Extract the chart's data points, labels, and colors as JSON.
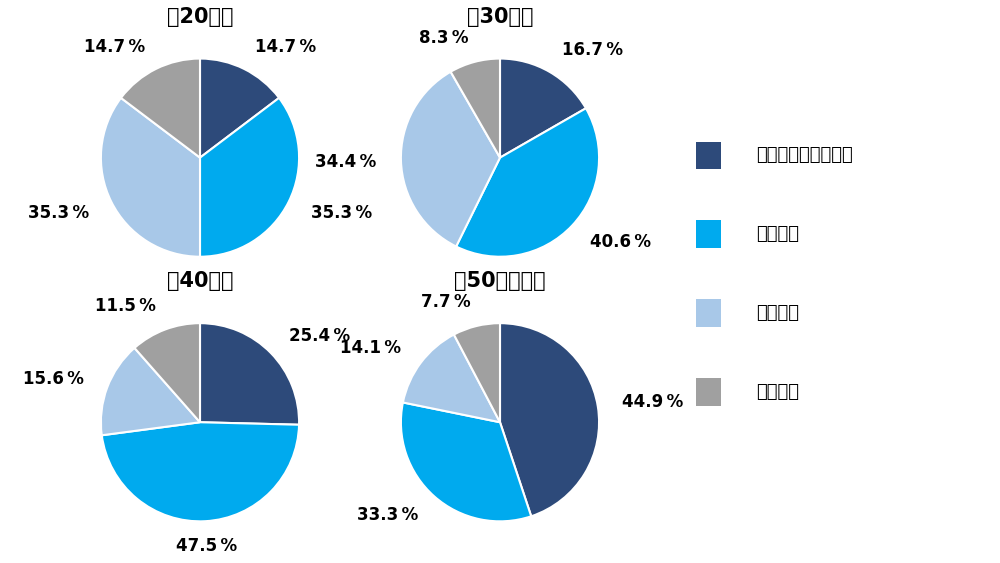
{
  "charts": [
    {
      "title": "　20代、",
      "values": [
        14.7,
        35.3,
        35.3,
        14.7
      ],
      "startangle": 90
    },
    {
      "title": "　30代、",
      "values": [
        16.7,
        40.6,
        34.4,
        8.3
      ],
      "startangle": 90
    },
    {
      "title": "　40代、",
      "values": [
        25.4,
        47.5,
        15.6,
        11.5
      ],
      "startangle": 90
    },
    {
      "title": "　50代以上、",
      "values": [
        44.9,
        33.3,
        14.1,
        7.7
      ],
      "startangle": 90
    }
  ],
  "titles": [
    "　20代、",
    "　30代、",
    "　40代、",
    "　50代以上、"
  ],
  "colors": [
    "#2d4a7a",
    "#00aaee",
    "#a8c8e8",
    "#a0a0a0"
  ],
  "legend_labels": [
    "ほとんど気づかない",
    "１～２回",
    "３～５回",
    "６回以上"
  ],
  "pct_labels": [
    [
      "14.7",
      "35.3",
      "35.3",
      "14.7"
    ],
    [
      "16.7",
      "40.6",
      "34.4",
      "8.3"
    ],
    [
      "25.4",
      "47.5",
      "15.6",
      "11.5"
    ],
    [
      "44.9",
      "33.3",
      "14.1",
      "7.7"
    ]
  ],
  "background_color": "#ffffff",
  "title_fontsize": 15,
  "label_fontsize": 12,
  "legend_fontsize": 13
}
